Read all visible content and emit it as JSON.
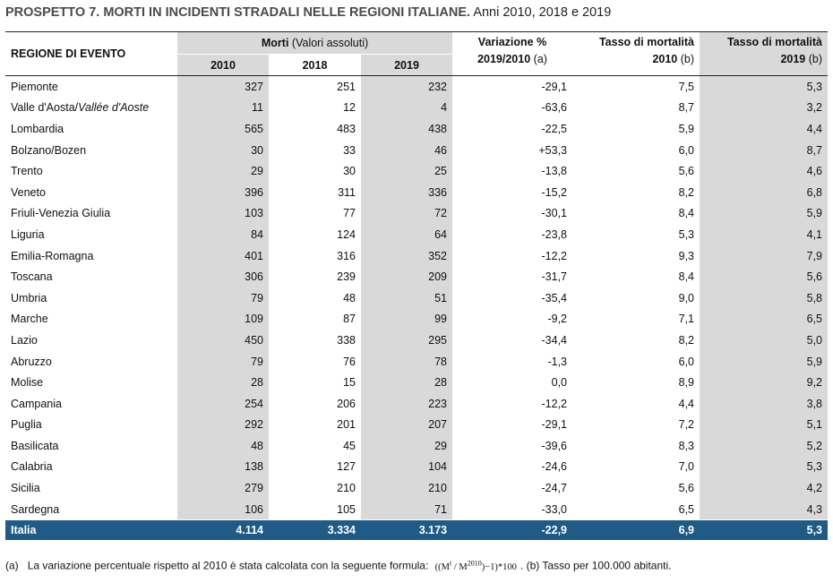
{
  "title": {
    "bold": "PROSPETTO 7. MORTI IN INCIDENTI STRADALI NELLE REGIONI ITALIANE.",
    "normal": "Anni 2010, 2018 e 2019"
  },
  "headers": {
    "region": "REGIONE DI EVENTO",
    "morti_bold": "Morti",
    "morti_unit": "(Valori assoluti)",
    "y2010": "2010",
    "y2018": "2018",
    "y2019": "2019",
    "var_line1": "Variazione %",
    "var_line2": "2019/2010",
    "var_note": "(a)",
    "t10_line1": "Tasso di mortalità",
    "t10_line2": "2010",
    "t10_note": "(b)",
    "t19_line1": "Tasso di mortalità",
    "t19_line2": "2019",
    "t19_note": "(b)"
  },
  "rows": [
    {
      "region": "Piemonte",
      "region_it": "",
      "m2010": "327",
      "m2018": "251",
      "m2019": "232",
      "var": "-29,1",
      "t2010": "7,5",
      "t2019": "5,3"
    },
    {
      "region": "Valle d'Aosta/",
      "region_it": "Vallée d'Aoste",
      "m2010": "11",
      "m2018": "12",
      "m2019": "4",
      "var": "-63,6",
      "t2010": "8,7",
      "t2019": "3,2"
    },
    {
      "region": "Lombardia",
      "region_it": "",
      "m2010": "565",
      "m2018": "483",
      "m2019": "438",
      "var": "-22,5",
      "t2010": "5,9",
      "t2019": "4,4"
    },
    {
      "region": "Bolzano/Bozen",
      "region_it": "",
      "m2010": "30",
      "m2018": "33",
      "m2019": "46",
      "var": "+53,3",
      "t2010": "6,0",
      "t2019": "8,7"
    },
    {
      "region": "Trento",
      "region_it": "",
      "m2010": "29",
      "m2018": "30",
      "m2019": "25",
      "var": "-13,8",
      "t2010": "5,6",
      "t2019": "4,6"
    },
    {
      "region": "Veneto",
      "region_it": "",
      "m2010": "396",
      "m2018": "311",
      "m2019": "336",
      "var": "-15,2",
      "t2010": "8,2",
      "t2019": "6,8"
    },
    {
      "region": "Friuli-Venezia Giulia",
      "region_it": "",
      "m2010": "103",
      "m2018": "77",
      "m2019": "72",
      "var": "-30,1",
      "t2010": "8,4",
      "t2019": "5,9"
    },
    {
      "region": "Liguria",
      "region_it": "",
      "m2010": "84",
      "m2018": "124",
      "m2019": "64",
      "var": "-23,8",
      "t2010": "5,3",
      "t2019": "4,1"
    },
    {
      "region": "Emilia-Romagna",
      "region_it": "",
      "m2010": "401",
      "m2018": "316",
      "m2019": "352",
      "var": "-12,2",
      "t2010": "9,3",
      "t2019": "7,9"
    },
    {
      "region": "Toscana",
      "region_it": "",
      "m2010": "306",
      "m2018": "239",
      "m2019": "209",
      "var": "-31,7",
      "t2010": "8,4",
      "t2019": "5,6"
    },
    {
      "region": "Umbria",
      "region_it": "",
      "m2010": "79",
      "m2018": "48",
      "m2019": "51",
      "var": "-35,4",
      "t2010": "9,0",
      "t2019": "5,8"
    },
    {
      "region": "Marche",
      "region_it": "",
      "m2010": "109",
      "m2018": "87",
      "m2019": "99",
      "var": "-9,2",
      "t2010": "7,1",
      "t2019": "6,5"
    },
    {
      "region": "Lazio",
      "region_it": "",
      "m2010": "450",
      "m2018": "338",
      "m2019": "295",
      "var": "-34,4",
      "t2010": "8,2",
      "t2019": "5,0"
    },
    {
      "region": "Abruzzo",
      "region_it": "",
      "m2010": "79",
      "m2018": "76",
      "m2019": "78",
      "var": "-1,3",
      "t2010": "6,0",
      "t2019": "5,9"
    },
    {
      "region": "Molise",
      "region_it": "",
      "m2010": "28",
      "m2018": "15",
      "m2019": "28",
      "var": "0,0",
      "t2010": "8,9",
      "t2019": "9,2"
    },
    {
      "region": "Campania",
      "region_it": "",
      "m2010": "254",
      "m2018": "206",
      "m2019": "223",
      "var": "-12,2",
      "t2010": "4,4",
      "t2019": "3,8"
    },
    {
      "region": "Puglia",
      "region_it": "",
      "m2010": "292",
      "m2018": "201",
      "m2019": "207",
      "var": "-29,1",
      "t2010": "7,2",
      "t2019": "5,1"
    },
    {
      "region": "Basilicata",
      "region_it": "",
      "m2010": "48",
      "m2018": "45",
      "m2019": "29",
      "var": "-39,6",
      "t2010": "8,3",
      "t2019": "5,2"
    },
    {
      "region": "Calabria",
      "region_it": "",
      "m2010": "138",
      "m2018": "127",
      "m2019": "104",
      "var": "-24,6",
      "t2010": "7,0",
      "t2019": "5,3"
    },
    {
      "region": "Sicilia",
      "region_it": "",
      "m2010": "279",
      "m2018": "210",
      "m2019": "210",
      "var": "-24,7",
      "t2010": "5,6",
      "t2019": "4,2"
    },
    {
      "region": "Sardegna",
      "region_it": "",
      "m2010": "106",
      "m2018": "105",
      "m2019": "71",
      "var": "-33,0",
      "t2010": "6,5",
      "t2019": "4,3"
    }
  ],
  "total": {
    "region": "Italia",
    "m2010": "4.114",
    "m2018": "3.334",
    "m2019": "3.173",
    "var": "-22,9",
    "t2010": "6,9",
    "t2019": "5,3"
  },
  "note": {
    "a_marker": "(a)",
    "a_text": "La variazione percentuale rispetto al 2010 è stata calcolata con la seguente formula:",
    "formula_pre": "((M",
    "formula_sup1": "t",
    "formula_mid": " / M",
    "formula_sup2": "2010",
    "formula_post": ")−1)*100",
    "b_text": ". (b) Tasso per 100.000 abitanti."
  },
  "colors": {
    "shade": "#d9d9d9",
    "total_bg": "#1f5b86",
    "total_text": "#ffffff"
  }
}
